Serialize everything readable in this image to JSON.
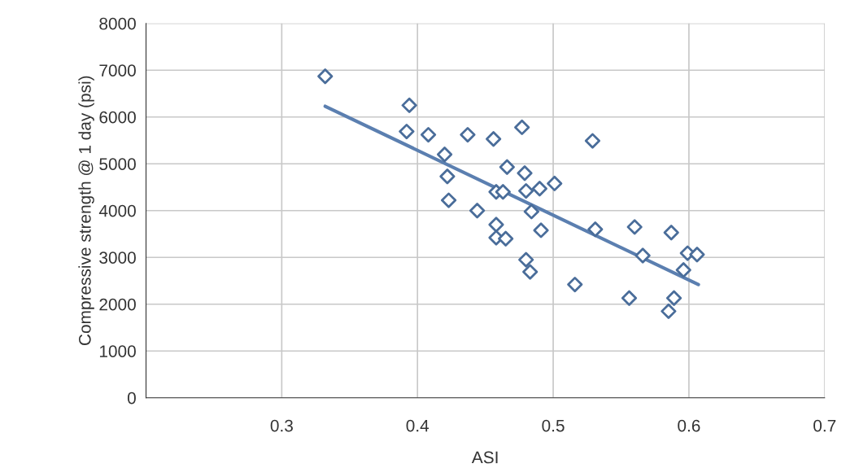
{
  "chart_data": {
    "type": "scatter",
    "xlabel": "ASI",
    "ylabel": "Compressive strength @ 1 day (psi)",
    "xlim": [
      0.2,
      0.7
    ],
    "xticks": [
      0.3,
      0.4,
      0.5,
      0.6,
      0.7
    ],
    "ylim": [
      0,
      8000
    ],
    "yticks": [
      0,
      1000,
      2000,
      3000,
      4000,
      5000,
      6000,
      7000,
      8000
    ],
    "grid": true,
    "marker": "diamond",
    "series": [
      {
        "color": "#4a6d9a",
        "x": [
          0.332,
          0.394,
          0.392,
          0.408,
          0.42,
          0.422,
          0.423,
          0.437,
          0.444,
          0.456,
          0.477,
          0.466,
          0.458,
          0.463,
          0.48,
          0.479,
          0.49,
          0.501,
          0.484,
          0.491,
          0.458,
          0.458,
          0.465,
          0.48,
          0.483,
          0.516,
          0.529,
          0.531,
          0.56,
          0.556,
          0.566,
          0.587,
          0.589,
          0.585,
          0.599,
          0.606,
          0.596
        ],
        "values": [
          6870,
          6250,
          5690,
          5620,
          5200,
          4730,
          4220,
          5620,
          4000,
          5530,
          5780,
          4930,
          4400,
          4400,
          4420,
          4800,
          4470,
          4580,
          3980,
          3580,
          3700,
          3420,
          3400,
          2950,
          2690,
          2420,
          5490,
          3600,
          3650,
          2130,
          3040,
          3530,
          2130,
          1850,
          3090,
          3060,
          2730
        ]
      },
      {
        "type": "line",
        "color": "#5b7fb0",
        "marker": "none",
        "x": [
          0.332,
          0.607
        ],
        "values": [
          6230,
          2420
        ]
      }
    ]
  }
}
